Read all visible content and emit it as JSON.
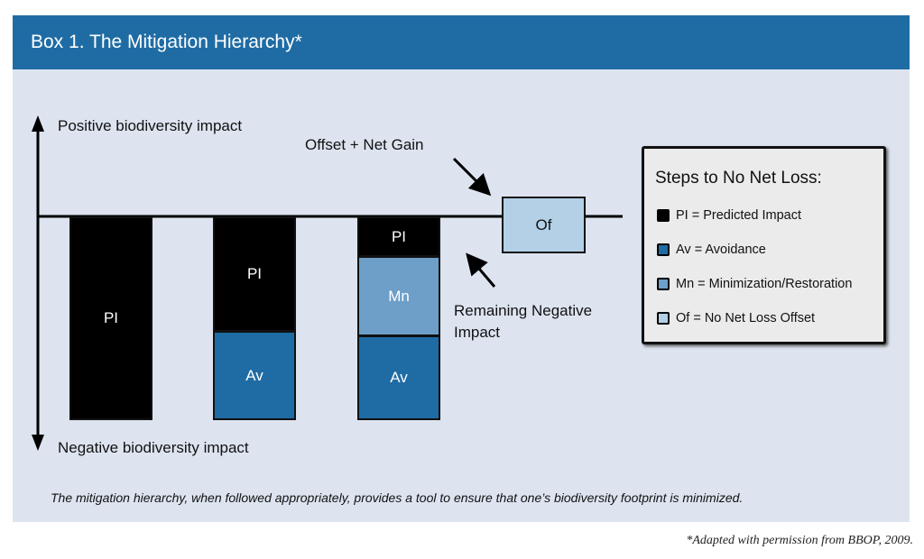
{
  "title": "Box 1.  The Mitigation Hierarchy*",
  "axis": {
    "positive": "Positive biodiversity impact",
    "negative": "Negative biodiversity impact"
  },
  "annotations": {
    "offset": "Offset + Net Gain",
    "remaining": "Remaining Negative",
    "remaining2": "Impact"
  },
  "bars": [
    {
      "segments": [
        {
          "label": "PI"
        }
      ]
    },
    {
      "segments": [
        {
          "label": "PI"
        },
        {
          "label": "Av"
        }
      ]
    },
    {
      "segments": [
        {
          "label": "PI"
        },
        {
          "label": "Mn"
        },
        {
          "label": "Av"
        }
      ]
    },
    {
      "segments": [
        {
          "label": "Of"
        }
      ]
    }
  ],
  "legend": {
    "title": "Steps to No Net Loss:",
    "items": [
      {
        "text": "PI = Predicted Impact",
        "color": "#000000"
      },
      {
        "text": "Av = Avoidance",
        "color": "#1f6ca4"
      },
      {
        "text": "Mn = Minimization/Restoration",
        "color": "#6d9fc8"
      },
      {
        "text": "Of = No Net Loss Offset",
        "color": "#b3d0e6"
      }
    ]
  },
  "caption": "The mitigation hierarchy, when followed appropriately, provides a tool to ensure that one’s biodiversity footprint is minimized.",
  "credit": "*Adapted with permission from BBOP, 2009.",
  "colors": {
    "header": "#1f6ca4",
    "panel": "#dde4f0"
  }
}
